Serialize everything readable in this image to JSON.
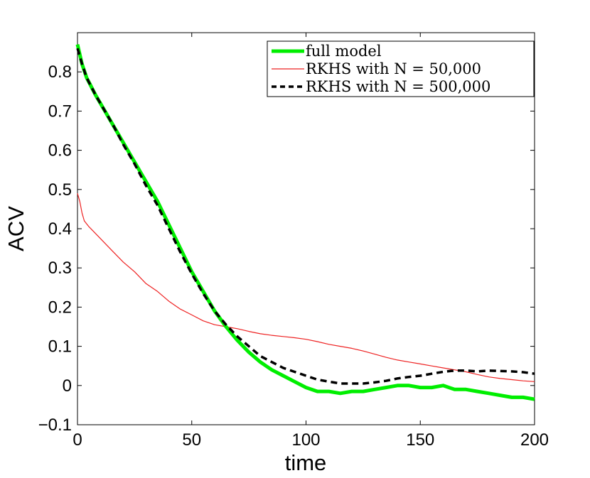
{
  "chart_data": {
    "type": "line",
    "xlabel": "time",
    "ylabel": "ACV",
    "xlim": [
      0,
      200
    ],
    "ylim": [
      -0.1,
      0.9
    ],
    "xticks": [
      0,
      50,
      100,
      150,
      200
    ],
    "xtick_labels": [
      "0",
      "50",
      "100",
      "150",
      "200"
    ],
    "yticks": [
      -0.1,
      0,
      0.1,
      0.2,
      0.3,
      0.4,
      0.5,
      0.6,
      0.7,
      0.8
    ],
    "ytick_labels": [
      "−0.1",
      "0",
      "0.1",
      "0.2",
      "0.3",
      "0.4",
      "0.5",
      "0.6",
      "0.7",
      "0.8"
    ],
    "grid": false,
    "legend_position": "top-right",
    "series": [
      {
        "name": "full model",
        "color": "#00ee00",
        "style": "solid-thick",
        "points": [
          [
            0,
            0.87
          ],
          [
            2,
            0.82
          ],
          [
            4,
            0.785
          ],
          [
            8,
            0.74
          ],
          [
            12,
            0.7
          ],
          [
            16,
            0.66
          ],
          [
            20,
            0.62
          ],
          [
            25,
            0.57
          ],
          [
            30,
            0.52
          ],
          [
            35,
            0.47
          ],
          [
            40,
            0.41
          ],
          [
            45,
            0.35
          ],
          [
            50,
            0.29
          ],
          [
            55,
            0.24
          ],
          [
            60,
            0.19
          ],
          [
            65,
            0.15
          ],
          [
            70,
            0.115
          ],
          [
            75,
            0.085
          ],
          [
            80,
            0.06
          ],
          [
            85,
            0.04
          ],
          [
            90,
            0.025
          ],
          [
            95,
            0.01
          ],
          [
            100,
            -0.005
          ],
          [
            105,
            -0.015
          ],
          [
            110,
            -0.015
          ],
          [
            115,
            -0.02
          ],
          [
            120,
            -0.015
          ],
          [
            125,
            -0.015
          ],
          [
            130,
            -0.01
          ],
          [
            135,
            -0.005
          ],
          [
            140,
            0
          ],
          [
            145,
            0
          ],
          [
            150,
            -0.005
          ],
          [
            155,
            -0.005
          ],
          [
            160,
            0
          ],
          [
            165,
            -0.01
          ],
          [
            170,
            -0.01
          ],
          [
            175,
            -0.015
          ],
          [
            180,
            -0.02
          ],
          [
            185,
            -0.025
          ],
          [
            190,
            -0.03
          ],
          [
            195,
            -0.03
          ],
          [
            200,
            -0.035
          ]
        ]
      },
      {
        "name": "RKHS with N = 50,000",
        "color": "#ee2222",
        "style": "solid-thin",
        "points": [
          [
            0,
            0.49
          ],
          [
            1,
            0.47
          ],
          [
            2,
            0.44
          ],
          [
            3,
            0.42
          ],
          [
            5,
            0.405
          ],
          [
            10,
            0.375
          ],
          [
            15,
            0.345
          ],
          [
            20,
            0.315
          ],
          [
            25,
            0.29
          ],
          [
            30,
            0.26
          ],
          [
            35,
            0.24
          ],
          [
            40,
            0.215
          ],
          [
            45,
            0.195
          ],
          [
            50,
            0.18
          ],
          [
            55,
            0.165
          ],
          [
            60,
            0.155
          ],
          [
            65,
            0.15
          ],
          [
            70,
            0.145
          ],
          [
            75,
            0.138
          ],
          [
            80,
            0.132
          ],
          [
            85,
            0.128
          ],
          [
            90,
            0.125
          ],
          [
            95,
            0.122
          ],
          [
            100,
            0.118
          ],
          [
            105,
            0.112
          ],
          [
            110,
            0.105
          ],
          [
            115,
            0.1
          ],
          [
            120,
            0.095
          ],
          [
            125,
            0.088
          ],
          [
            130,
            0.08
          ],
          [
            135,
            0.072
          ],
          [
            140,
            0.065
          ],
          [
            145,
            0.06
          ],
          [
            150,
            0.055
          ],
          [
            155,
            0.05
          ],
          [
            160,
            0.045
          ],
          [
            165,
            0.04
          ],
          [
            170,
            0.035
          ],
          [
            175,
            0.028
          ],
          [
            180,
            0.022
          ],
          [
            185,
            0.018
          ],
          [
            190,
            0.015
          ],
          [
            195,
            0.012
          ],
          [
            200,
            0.01
          ]
        ]
      },
      {
        "name": "RKHS with N = 500,000",
        "color": "#000000",
        "style": "dashed",
        "points": [
          [
            0,
            0.86
          ],
          [
            2,
            0.82
          ],
          [
            4,
            0.785
          ],
          [
            8,
            0.74
          ],
          [
            12,
            0.7
          ],
          [
            16,
            0.66
          ],
          [
            20,
            0.615
          ],
          [
            25,
            0.565
          ],
          [
            30,
            0.51
          ],
          [
            35,
            0.46
          ],
          [
            40,
            0.4
          ],
          [
            45,
            0.34
          ],
          [
            50,
            0.285
          ],
          [
            55,
            0.235
          ],
          [
            60,
            0.19
          ],
          [
            65,
            0.155
          ],
          [
            70,
            0.125
          ],
          [
            75,
            0.1
          ],
          [
            80,
            0.075
          ],
          [
            85,
            0.06
          ],
          [
            90,
            0.045
          ],
          [
            95,
            0.035
          ],
          [
            100,
            0.025
          ],
          [
            105,
            0.015
          ],
          [
            110,
            0.01
          ],
          [
            115,
            0.005
          ],
          [
            120,
            0.005
          ],
          [
            125,
            0.005
          ],
          [
            130,
            0.008
          ],
          [
            135,
            0.012
          ],
          [
            140,
            0.018
          ],
          [
            145,
            0.022
          ],
          [
            150,
            0.025
          ],
          [
            155,
            0.03
          ],
          [
            160,
            0.035
          ],
          [
            165,
            0.038
          ],
          [
            170,
            0.038
          ],
          [
            175,
            0.036
          ],
          [
            180,
            0.038
          ],
          [
            185,
            0.037
          ],
          [
            190,
            0.036
          ],
          [
            195,
            0.034
          ],
          [
            200,
            0.03
          ]
        ]
      }
    ],
    "legend": [
      {
        "label": "full model",
        "series": 0
      },
      {
        "label": "RKHS with N = 50,000",
        "series": 1
      },
      {
        "label": "RKHS with N = 500,000",
        "series": 2
      }
    ]
  }
}
